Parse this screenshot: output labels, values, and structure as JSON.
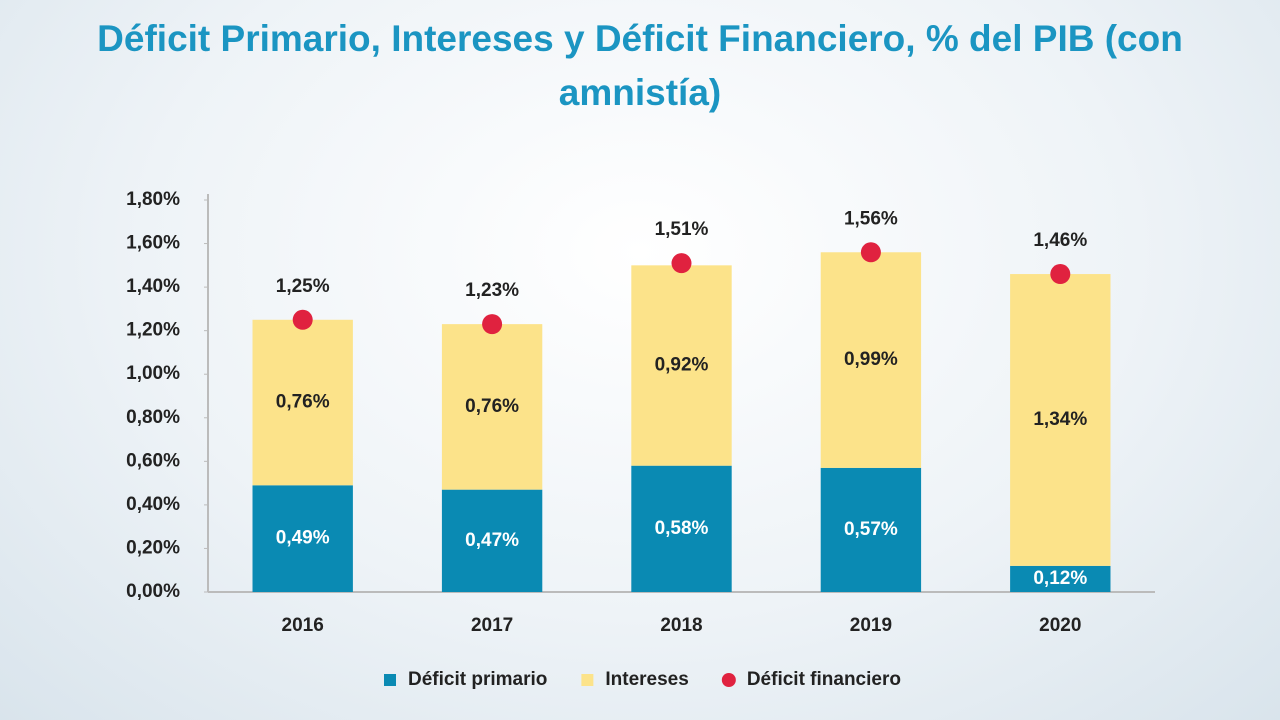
{
  "chart_data": {
    "type": "bar",
    "stacked": true,
    "title": "Déficit Primario, Intereses y Déficit Financiero, % del PIB (con amnistía)",
    "categories": [
      "2016",
      "2017",
      "2018",
      "2019",
      "2020"
    ],
    "series": [
      {
        "name": "Déficit primario",
        "color": "#0a8ab3",
        "label_color": "#ffffff",
        "values": [
          0.49,
          0.47,
          0.58,
          0.57,
          0.12
        ],
        "value_labels": [
          "0,49%",
          "0,47%",
          "0,58%",
          "0,57%",
          "0,12%"
        ]
      },
      {
        "name": "Intereses",
        "color": "#fce38a",
        "label_color": "#222222",
        "values": [
          0.76,
          0.76,
          0.92,
          0.99,
          1.34
        ],
        "value_labels": [
          "0,76%",
          "0,76%",
          "0,92%",
          "0,99%",
          "1,34%"
        ]
      },
      {
        "name": "Déficit financiero",
        "color": "#e0223f",
        "label_color": "#222222",
        "type": "scatter",
        "values": [
          1.25,
          1.23,
          1.51,
          1.56,
          1.46
        ],
        "value_labels": [
          "1,25%",
          "1,23%",
          "1,51%",
          "1,56%",
          "1,46%"
        ]
      }
    ],
    "ylim": [
      0,
      1.8
    ],
    "yticks": [
      {
        "value": 0,
        "label": "0,00%"
      },
      {
        "value": 0.2,
        "label": "0,20%"
      },
      {
        "value": 0.4,
        "label": "0,40%"
      },
      {
        "value": 0.6,
        "label": "0,60%"
      },
      {
        "value": 0.8,
        "label": "0,80%"
      },
      {
        "value": 1.0,
        "label": "1,00%"
      },
      {
        "value": 1.2,
        "label": "1,20%"
      },
      {
        "value": 1.4,
        "label": "1,40%"
      },
      {
        "value": 1.6,
        "label": "1,60%"
      },
      {
        "value": 1.8,
        "label": "1,80%"
      }
    ],
    "grid": false,
    "legend": "bottom"
  }
}
